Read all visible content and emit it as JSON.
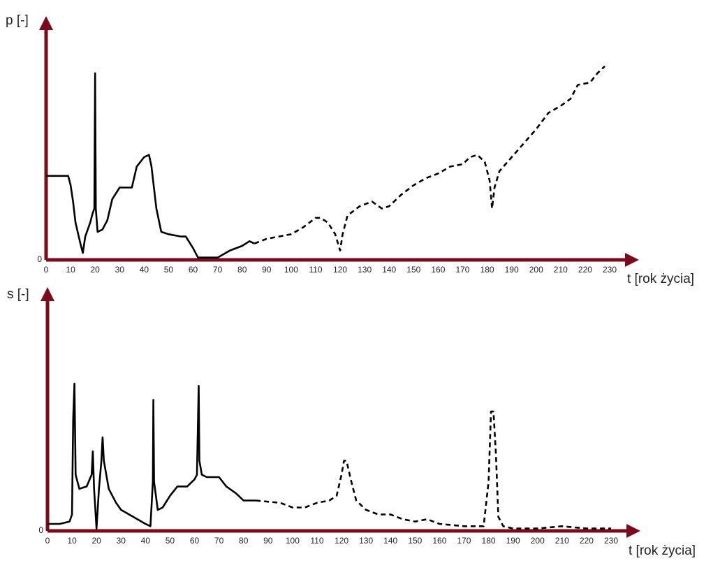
{
  "chart_data": [
    {
      "type": "line",
      "ylabel": "p [-]",
      "xlabel": "t [rok życia]",
      "xlim": [
        0,
        230
      ],
      "xticks": [
        0,
        10,
        20,
        30,
        40,
        50,
        60,
        70,
        80,
        90,
        100,
        110,
        120,
        130,
        140,
        150,
        160,
        170,
        180,
        190,
        200,
        210,
        220,
        230
      ],
      "ylim": [
        0,
        100
      ],
      "yticks": [
        0
      ],
      "x": [
        0,
        5,
        9,
        10,
        11,
        12,
        14,
        15,
        16,
        18,
        19,
        19.7,
        20,
        20.3,
        21,
        23,
        25,
        27,
        30,
        33,
        35,
        37,
        40,
        42,
        43,
        45,
        47,
        50,
        55,
        57,
        60,
        62,
        65,
        70,
        75,
        80,
        83,
        85,
        90,
        95,
        100,
        105,
        110,
        112,
        115,
        118,
        120,
        121,
        123,
        128,
        133,
        137,
        140,
        145,
        150,
        155,
        160,
        165,
        170,
        173,
        176,
        179,
        181,
        182,
        183,
        185,
        190,
        195,
        200,
        205,
        210,
        214,
        217,
        222,
        225,
        228
      ],
      "series": [
        {
          "color": "#000000",
          "dash": false,
          "values": [
            36,
            36,
            36,
            32,
            25,
            16,
            7,
            3,
            10,
            16,
            20,
            22,
            80,
            22,
            12,
            13,
            17,
            26,
            31,
            31,
            31,
            40,
            44,
            45,
            40,
            22,
            12,
            11,
            10,
            10,
            5,
            1,
            1,
            1,
            4,
            6,
            8,
            7,
            null,
            null,
            null,
            null,
            null,
            null,
            null,
            null,
            null,
            null,
            null,
            null,
            null,
            null,
            null,
            null,
            null,
            null,
            null,
            null,
            null,
            null,
            null,
            null,
            null,
            null,
            null,
            null,
            null,
            null,
            null,
            null,
            null,
            null,
            null,
            null,
            null,
            null
          ]
        },
        {
          "color": "#000000",
          "dash": true,
          "values": [
            null,
            null,
            null,
            null,
            null,
            null,
            null,
            null,
            null,
            null,
            null,
            null,
            null,
            null,
            null,
            null,
            null,
            null,
            null,
            null,
            null,
            null,
            null,
            null,
            null,
            null,
            null,
            null,
            null,
            null,
            null,
            null,
            null,
            null,
            null,
            null,
            null,
            7,
            9,
            10,
            11,
            14,
            18,
            18,
            16,
            11,
            4,
            11,
            19,
            23,
            25,
            22,
            23,
            28,
            32,
            35,
            37,
            40,
            41,
            44,
            45,
            42,
            34,
            22,
            31,
            38,
            44,
            50,
            56,
            63,
            66,
            69,
            75,
            76,
            80,
            83
          ]
        }
      ]
    },
    {
      "type": "line",
      "ylabel": "s [-]",
      "xlabel": "t [rok życia]",
      "xlim": [
        0,
        230
      ],
      "xticks": [
        0,
        10,
        20,
        30,
        40,
        50,
        60,
        70,
        80,
        90,
        100,
        110,
        120,
        130,
        140,
        150,
        160,
        170,
        180,
        190,
        200,
        210,
        220,
        230
      ],
      "ylim": [
        0,
        100
      ],
      "yticks": [
        0
      ],
      "x": [
        0,
        5,
        9,
        10,
        10.5,
        11,
        11.5,
        13,
        16,
        18,
        18.5,
        19,
        20,
        21,
        22,
        22.5,
        23,
        25,
        28,
        30,
        35,
        40,
        42,
        43,
        43.2,
        43.5,
        45,
        47,
        50,
        53,
        57,
        60,
        61,
        61.7,
        62,
        63,
        65,
        70,
        73,
        77,
        80,
        85,
        95,
        100,
        105,
        110,
        115,
        118,
        120,
        121,
        122,
        124,
        126,
        130,
        135,
        140,
        145,
        150,
        155,
        160,
        170,
        175,
        178,
        180,
        181,
        182,
        183,
        184,
        186,
        190,
        200,
        210,
        220,
        230
      ],
      "series": [
        {
          "color": "#000000",
          "dash": false,
          "values": [
            3,
            3,
            4,
            7,
            48,
            63,
            24,
            18,
            19,
            24,
            34,
            18,
            1,
            18,
            30,
            40,
            30,
            18,
            12,
            9,
            6,
            3,
            2,
            21,
            56,
            21,
            9,
            10,
            15,
            19,
            19,
            22,
            24,
            62,
            30,
            24,
            23,
            23,
            19,
            16,
            13,
            13,
            null,
            null,
            null,
            null,
            null,
            null,
            null,
            null,
            null,
            null,
            null,
            null,
            null,
            null,
            null,
            null,
            null,
            null,
            null,
            null,
            null,
            null,
            null,
            null,
            null,
            null,
            null,
            null,
            null,
            null,
            null,
            null
          ]
        },
        {
          "color": "#000000",
          "dash": true,
          "values": [
            null,
            null,
            null,
            null,
            null,
            null,
            null,
            null,
            null,
            null,
            null,
            null,
            null,
            null,
            null,
            null,
            null,
            null,
            null,
            null,
            null,
            null,
            null,
            null,
            null,
            null,
            null,
            null,
            null,
            null,
            null,
            null,
            null,
            null,
            null,
            null,
            null,
            null,
            null,
            null,
            null,
            13,
            12,
            10,
            10,
            12,
            13,
            15,
            24,
            30,
            30,
            21,
            13,
            9,
            7,
            7,
            5,
            4,
            5,
            3,
            2,
            2,
            2,
            21,
            51,
            51,
            33,
            6,
            2,
            1,
            1,
            2,
            1,
            1
          ]
        }
      ]
    }
  ]
}
